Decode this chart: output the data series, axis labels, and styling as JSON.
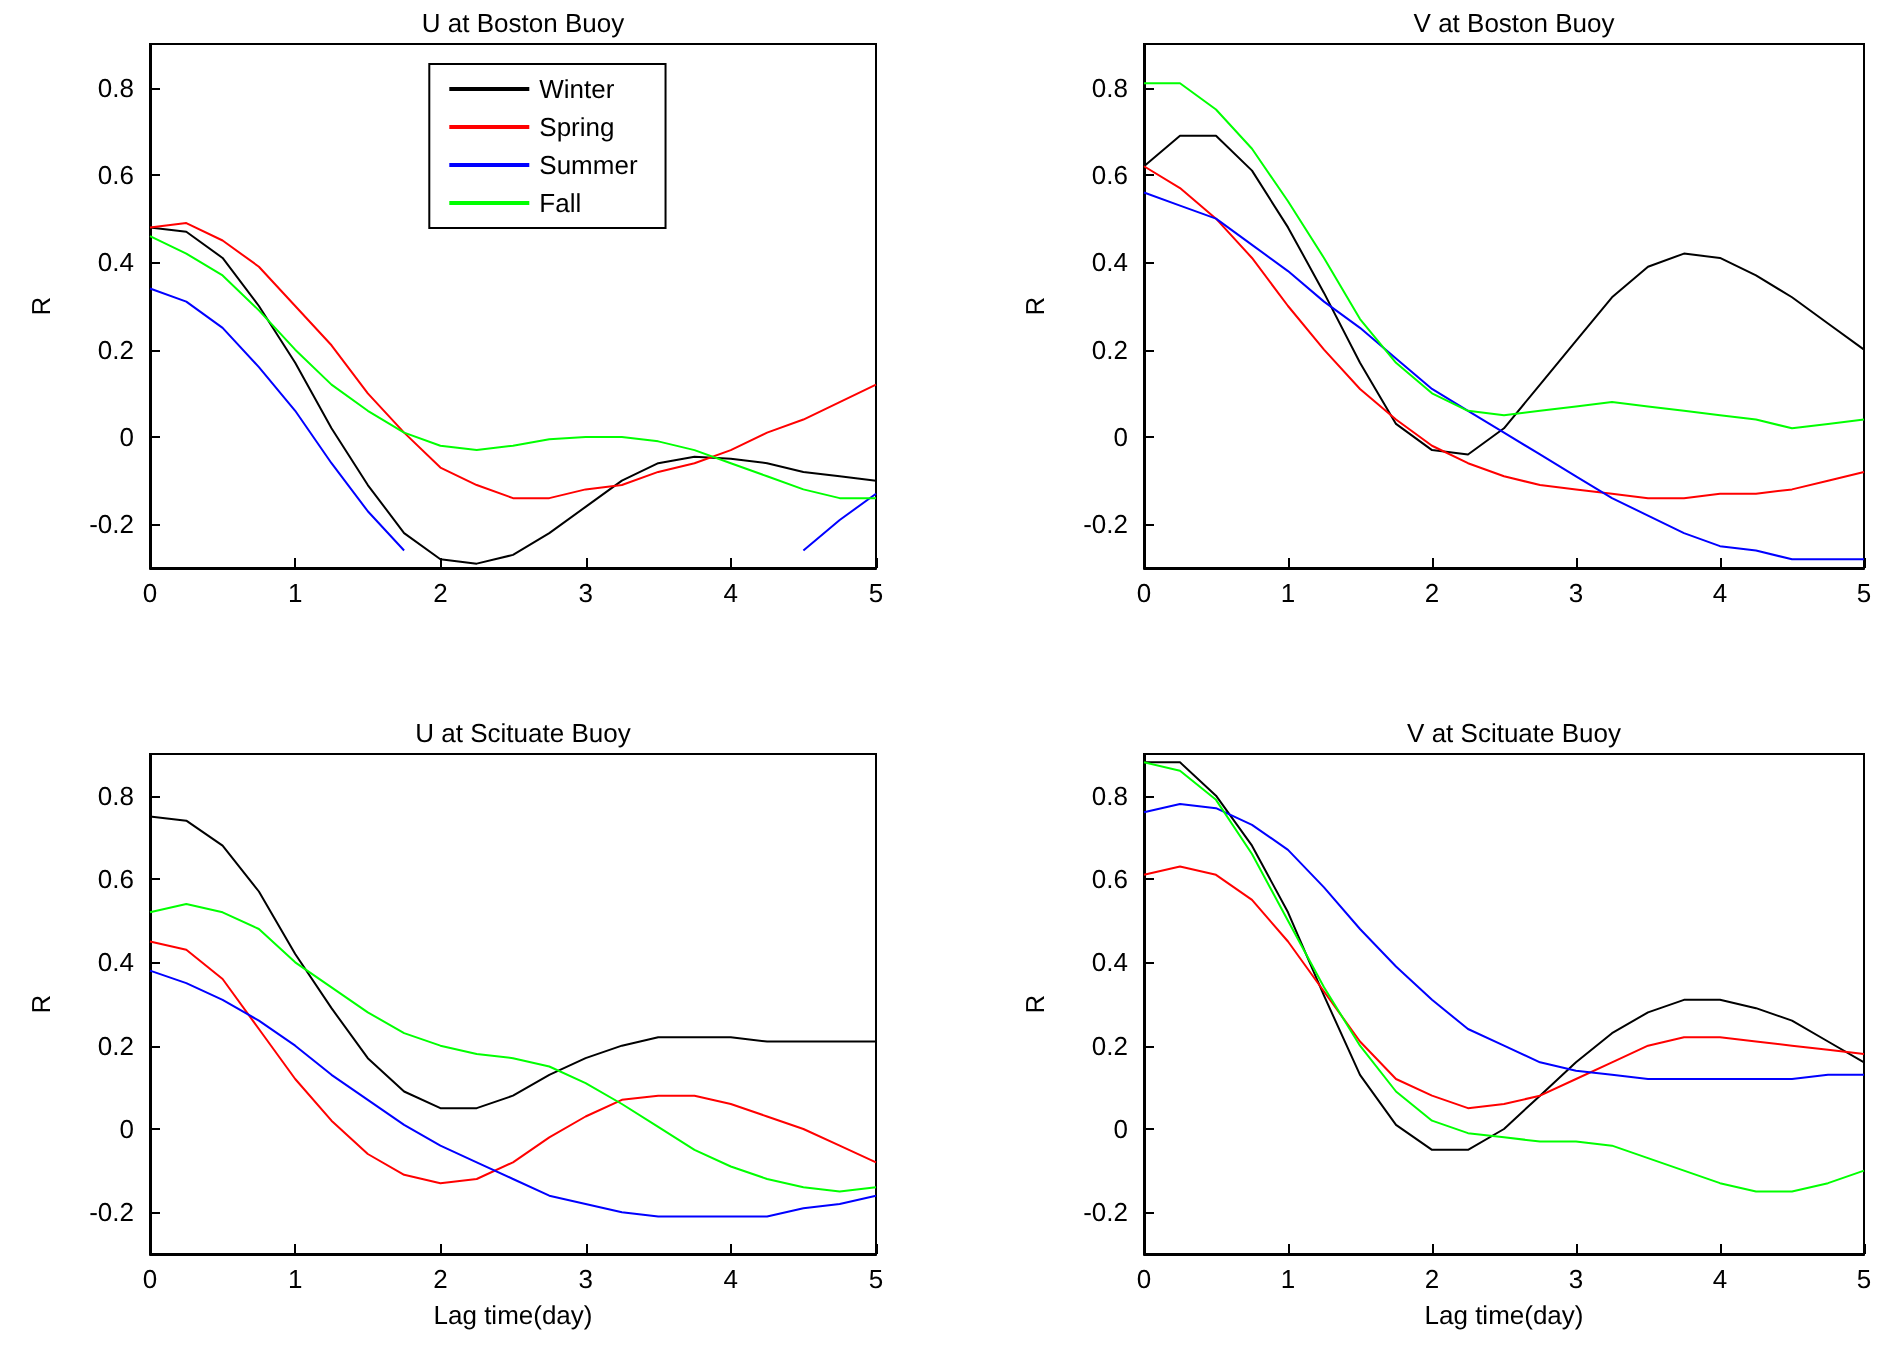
{
  "chart_data": [
    {
      "type": "line",
      "title": "U at Boston Buoy",
      "ylabel": "R",
      "x": [
        0,
        0.25,
        0.5,
        0.75,
        1,
        1.25,
        1.5,
        1.75,
        2,
        2.25,
        2.5,
        2.75,
        3,
        3.25,
        3.5,
        3.75,
        4,
        4.25,
        4.5,
        4.75,
        5
      ],
      "xlim": [
        0,
        5
      ],
      "ylim": [
        -0.3,
        0.9
      ],
      "xticks": [
        0,
        1,
        2,
        3,
        4,
        5
      ],
      "yticks": [
        -0.2,
        0,
        0.2,
        0.4,
        0.6,
        0.8
      ],
      "grid": false,
      "legend": "top",
      "series": [
        {
          "name": "Winter",
          "color": "#000000",
          "values": [
            0.48,
            0.47,
            0.41,
            0.3,
            0.17,
            0.02,
            -0.11,
            -0.22,
            -0.28,
            -0.29,
            -0.27,
            -0.22,
            -0.16,
            -0.1,
            -0.06,
            -0.045,
            -0.05,
            -0.06,
            -0.08,
            -0.09,
            -0.1
          ]
        },
        {
          "name": "Spring",
          "color": "#ff0000",
          "values": [
            0.48,
            0.49,
            0.45,
            0.39,
            0.3,
            0.21,
            0.1,
            0.01,
            -0.07,
            -0.11,
            -0.14,
            -0.14,
            -0.12,
            -0.11,
            -0.08,
            -0.06,
            -0.03,
            0.01,
            0.04,
            0.08,
            0.12
          ]
        },
        {
          "name": "Summer",
          "color": "#0000ff",
          "x": [
            0,
            0.25,
            0.5,
            0.75,
            1,
            1.25,
            1.5,
            1.75,
            3,
            4.5,
            4.75,
            5
          ],
          "values": [
            0.34,
            0.31,
            0.25,
            0.16,
            0.06,
            -0.06,
            -0.17,
            -0.26,
            null,
            -0.26,
            -0.19,
            -0.13
          ]
        },
        {
          "name": "Fall",
          "color": "#00ff00",
          "values": [
            0.46,
            0.42,
            0.37,
            0.29,
            0.2,
            0.12,
            0.06,
            0.01,
            -0.02,
            -0.03,
            -0.02,
            -0.005,
            0,
            0,
            -0.01,
            -0.03,
            -0.06,
            -0.09,
            -0.12,
            -0.14,
            -0.14
          ]
        }
      ]
    },
    {
      "type": "line",
      "title": "V at Boston Buoy",
      "ylabel": "R",
      "x": [
        0,
        0.25,
        0.5,
        0.75,
        1,
        1.25,
        1.5,
        1.75,
        2,
        2.25,
        2.5,
        2.75,
        3,
        3.25,
        3.5,
        3.75,
        4,
        4.25,
        4.5,
        4.75,
        5
      ],
      "xlim": [
        0,
        5
      ],
      "ylim": [
        -0.3,
        0.9
      ],
      "xticks": [
        0,
        1,
        2,
        3,
        4,
        5
      ],
      "yticks": [
        -0.2,
        0,
        0.2,
        0.4,
        0.6,
        0.8
      ],
      "grid": false,
      "series": [
        {
          "color": "#000000",
          "values": [
            0.62,
            0.69,
            0.69,
            0.61,
            0.48,
            0.33,
            0.17,
            0.03,
            -0.03,
            -0.04,
            0.02,
            0.12,
            0.22,
            0.32,
            0.39,
            0.42,
            0.41,
            0.37,
            0.32,
            0.26,
            0.2
          ]
        },
        {
          "color": "#ff0000",
          "values": [
            0.62,
            0.57,
            0.5,
            0.41,
            0.3,
            0.2,
            0.11,
            0.04,
            -0.02,
            -0.06,
            -0.09,
            -0.11,
            -0.12,
            -0.13,
            -0.14,
            -0.14,
            -0.13,
            -0.13,
            -0.12,
            -0.1,
            -0.08
          ]
        },
        {
          "color": "#0000ff",
          "values": [
            0.56,
            0.53,
            0.5,
            0.44,
            0.38,
            0.31,
            0.25,
            0.18,
            0.11,
            0.06,
            0.01,
            -0.04,
            -0.09,
            -0.14,
            -0.18,
            -0.22,
            -0.25,
            -0.26,
            -0.28,
            -0.28,
            -0.28
          ]
        },
        {
          "color": "#00ff00",
          "values": [
            0.81,
            0.81,
            0.75,
            0.66,
            0.54,
            0.41,
            0.27,
            0.17,
            0.1,
            0.06,
            0.05,
            0.06,
            0.07,
            0.08,
            0.07,
            0.06,
            0.05,
            0.04,
            0.02,
            0.03,
            0.04
          ]
        }
      ]
    },
    {
      "type": "line",
      "title": "U at Scituate Buoy",
      "xlabel": "Lag time(day)",
      "ylabel": "R",
      "x": [
        0,
        0.25,
        0.5,
        0.75,
        1,
        1.25,
        1.5,
        1.75,
        2,
        2.25,
        2.5,
        2.75,
        3,
        3.25,
        3.5,
        3.75,
        4,
        4.25,
        4.5,
        4.75,
        5
      ],
      "xlim": [
        0,
        5
      ],
      "ylim": [
        -0.3,
        0.9
      ],
      "xticks": [
        0,
        1,
        2,
        3,
        4,
        5
      ],
      "yticks": [
        -0.2,
        0,
        0.2,
        0.4,
        0.6,
        0.8
      ],
      "grid": false,
      "series": [
        {
          "color": "#000000",
          "values": [
            0.75,
            0.74,
            0.68,
            0.57,
            0.42,
            0.29,
            0.17,
            0.09,
            0.05,
            0.05,
            0.08,
            0.13,
            0.17,
            0.2,
            0.22,
            0.22,
            0.22,
            0.21,
            0.21,
            0.21,
            0.21
          ]
        },
        {
          "color": "#ff0000",
          "values": [
            0.45,
            0.43,
            0.36,
            0.24,
            0.12,
            0.02,
            -0.06,
            -0.11,
            -0.13,
            -0.12,
            -0.08,
            -0.02,
            0.03,
            0.07,
            0.08,
            0.08,
            0.06,
            0.03,
            0,
            -0.04,
            -0.08
          ]
        },
        {
          "color": "#0000ff",
          "values": [
            0.38,
            0.35,
            0.31,
            0.26,
            0.2,
            0.13,
            0.07,
            0.01,
            -0.04,
            -0.08,
            -0.12,
            -0.16,
            -0.18,
            -0.2,
            -0.21,
            -0.21,
            -0.21,
            -0.21,
            -0.19,
            -0.18,
            -0.16
          ]
        },
        {
          "color": "#00ff00",
          "values": [
            0.52,
            0.54,
            0.52,
            0.48,
            0.4,
            0.34,
            0.28,
            0.23,
            0.2,
            0.18,
            0.17,
            0.15,
            0.11,
            0.06,
            0.005,
            -0.05,
            -0.09,
            -0.12,
            -0.14,
            -0.15,
            -0.14
          ]
        }
      ]
    },
    {
      "type": "line",
      "title": "V at Scituate Buoy",
      "xlabel": "Lag time(day)",
      "ylabel": "R",
      "x": [
        0,
        0.25,
        0.5,
        0.75,
        1,
        1.25,
        1.5,
        1.75,
        2,
        2.25,
        2.5,
        2.75,
        3,
        3.25,
        3.5,
        3.75,
        4,
        4.25,
        4.5,
        4.75,
        5
      ],
      "xlim": [
        0,
        5
      ],
      "ylim": [
        -0.3,
        0.9
      ],
      "xticks": [
        0,
        1,
        2,
        3,
        4,
        5
      ],
      "yticks": [
        -0.2,
        0,
        0.2,
        0.4,
        0.6,
        0.8
      ],
      "grid": false,
      "series": [
        {
          "color": "#000000",
          "values": [
            0.88,
            0.88,
            0.8,
            0.68,
            0.52,
            0.32,
            0.13,
            0.01,
            -0.05,
            -0.05,
            0,
            0.08,
            0.16,
            0.23,
            0.28,
            0.31,
            0.31,
            0.29,
            0.26,
            0.21,
            0.16
          ]
        },
        {
          "color": "#ff0000",
          "values": [
            0.61,
            0.63,
            0.61,
            0.55,
            0.45,
            0.33,
            0.21,
            0.12,
            0.08,
            0.05,
            0.06,
            0.08,
            0.12,
            0.16,
            0.2,
            0.22,
            0.22,
            0.21,
            0.2,
            0.19,
            0.18
          ]
        },
        {
          "color": "#0000ff",
          "values": [
            0.76,
            0.78,
            0.77,
            0.73,
            0.67,
            0.58,
            0.48,
            0.39,
            0.31,
            0.24,
            0.2,
            0.16,
            0.14,
            0.13,
            0.12,
            0.12,
            0.12,
            0.12,
            0.12,
            0.13,
            0.13
          ]
        },
        {
          "color": "#00ff00",
          "values": [
            0.88,
            0.86,
            0.79,
            0.66,
            0.5,
            0.34,
            0.2,
            0.09,
            0.02,
            -0.01,
            -0.02,
            -0.03,
            -0.03,
            -0.04,
            -0.07,
            -0.1,
            -0.13,
            -0.15,
            -0.15,
            -0.13,
            -0.1
          ]
        }
      ]
    }
  ]
}
